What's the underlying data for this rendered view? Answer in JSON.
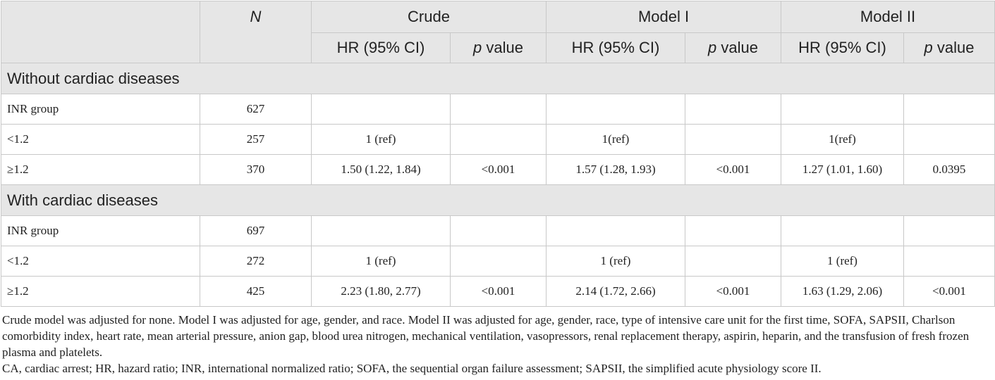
{
  "header": {
    "n_label": "N",
    "groups": [
      "Crude",
      "Model I",
      "Model II"
    ],
    "sub": {
      "hr": "HR (95% CI)",
      "p_italic": "p",
      "p_rest": " value"
    }
  },
  "sections": [
    {
      "title": "Without cardiac diseases",
      "rows": [
        {
          "label": "INR group",
          "n": "627",
          "c_hr": "",
          "c_p": "",
          "m1_hr": "",
          "m1_p": "",
          "m2_hr": "",
          "m2_p": ""
        },
        {
          "label": "<1.2",
          "n": "257",
          "c_hr": "1 (ref)",
          "c_p": "",
          "m1_hr": "1(ref)",
          "m1_p": "",
          "m2_hr": "1(ref)",
          "m2_p": ""
        },
        {
          "label": "≥1.2",
          "n": "370",
          "c_hr": "1.50 (1.22, 1.84)",
          "c_p": "<0.001",
          "m1_hr": "1.57 (1.28, 1.93)",
          "m1_p": "<0.001",
          "m2_hr": "1.27 (1.01, 1.60)",
          "m2_p": "0.0395"
        }
      ]
    },
    {
      "title": "With cardiac diseases",
      "rows": [
        {
          "label": "INR group",
          "n": "697",
          "c_hr": "",
          "c_p": "",
          "m1_hr": "",
          "m1_p": "",
          "m2_hr": "",
          "m2_p": ""
        },
        {
          "label": "<1.2",
          "n": "272",
          "c_hr": "1 (ref)",
          "c_p": "",
          "m1_hr": "1 (ref)",
          "m1_p": "",
          "m2_hr": "1 (ref)",
          "m2_p": ""
        },
        {
          "label": "≥1.2",
          "n": "425",
          "c_hr": "2.23 (1.80, 2.77)",
          "c_p": "<0.001",
          "m1_hr": "2.14 (1.72, 2.66)",
          "m1_p": "<0.001",
          "m2_hr": "1.63 (1.29, 2.06)",
          "m2_p": "<0.001"
        }
      ]
    }
  ],
  "notes": [
    "Crude model was adjusted for none. Model I was adjusted for age, gender, and race. Model II was adjusted for age, gender, race, type of intensive care unit for the first time, SOFA, SAPSII, Charlson comorbidity index, heart rate, mean arterial pressure, anion gap, blood urea nitrogen, mechanical ventilation, vasopressors, renal replacement therapy, aspirin, heparin, and the transfusion of fresh frozen plasma and platelets.",
    "CA, cardiac arrest; HR, hazard ratio; INR, international normalized ratio; SOFA, the sequential organ failure assessment; SAPSII, the simplified acute physiology score II."
  ]
}
